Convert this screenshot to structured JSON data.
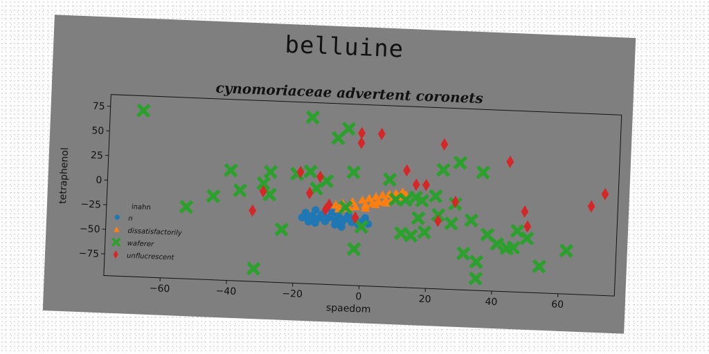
{
  "chart_data": {
    "type": "scatter",
    "suptitle": "belluine",
    "title": "cynomoriaceae advertent coronets",
    "xlabel": "spaedom",
    "ylabel": "tetraphenol",
    "xlim": [
      -77,
      77
    ],
    "ylim": [
      -97,
      87
    ],
    "xticks": [
      -60,
      -40,
      -20,
      0,
      20,
      40,
      60
    ],
    "yticks": [
      -75,
      -50,
      -25,
      0,
      25,
      50,
      75
    ],
    "legend": {
      "title": "inahn",
      "placement": "lower-left",
      "entries": [
        "n",
        "dissatisfactorily",
        "waferer",
        "unflucrescent"
      ]
    },
    "series": [
      {
        "name": "n",
        "marker": "circle",
        "color": "#1f77b4",
        "points": [
          [
            -18,
            -30
          ],
          [
            -17,
            -25
          ],
          [
            -16,
            -31
          ],
          [
            -15,
            -28
          ],
          [
            -14,
            -22
          ],
          [
            -13,
            -30
          ],
          [
            -12,
            -26
          ],
          [
            -11,
            -33
          ],
          [
            -10,
            -29
          ],
          [
            -9,
            -24
          ],
          [
            -8,
            -31
          ],
          [
            -7,
            -27
          ],
          [
            -6,
            -34
          ],
          [
            -5,
            -30
          ],
          [
            -4,
            -26
          ],
          [
            -3,
            -33
          ],
          [
            -2,
            -29
          ],
          [
            -1,
            -35
          ],
          [
            0,
            -32
          ],
          [
            1,
            -28
          ],
          [
            2,
            -34
          ],
          [
            -16,
            -34
          ],
          [
            -14,
            -35
          ],
          [
            -8,
            -36
          ],
          [
            -6,
            -38
          ]
        ]
      },
      {
        "name": "dissatisfactorily",
        "marker": "triangle",
        "color": "#ff7f0e",
        "points": [
          [
            -8,
            -16
          ],
          [
            -6,
            -14
          ],
          [
            -5,
            -19
          ],
          [
            -3,
            -12
          ],
          [
            -2,
            -17
          ],
          [
            0,
            -10
          ],
          [
            1,
            -15
          ],
          [
            2,
            -8
          ],
          [
            3,
            -13
          ],
          [
            4,
            -6
          ],
          [
            5,
            -11
          ],
          [
            6,
            -4
          ],
          [
            7,
            -9
          ],
          [
            8,
            -3
          ],
          [
            9,
            -7
          ],
          [
            10,
            -2
          ],
          [
            11,
            -5
          ],
          [
            12,
            0
          ],
          [
            -7,
            -20
          ],
          [
            -4,
            -18
          ],
          [
            1,
            -18
          ],
          [
            4,
            -14
          ],
          [
            7,
            -12
          ],
          [
            10,
            -8
          ],
          [
            13,
            -3
          ]
        ]
      },
      {
        "name": "waferer",
        "marker": "x",
        "color": "#2ca02c",
        "points": [
          [
            -67,
            72
          ],
          [
            -53,
            -24
          ],
          [
            -45,
            -12
          ],
          [
            -40,
            15
          ],
          [
            -37,
            -5
          ],
          [
            -32,
            -84
          ],
          [
            -30,
            3
          ],
          [
            -28,
            15
          ],
          [
            -28,
            -8
          ],
          [
            -24,
            -43
          ],
          [
            -20,
            14
          ],
          [
            -16,
            72
          ],
          [
            -16,
            17
          ],
          [
            -14,
            0
          ],
          [
            -11,
            8
          ],
          [
            -8,
            52
          ],
          [
            -5,
            62
          ],
          [
            -5,
            -18
          ],
          [
            -3,
            18
          ],
          [
            -2,
            -60
          ],
          [
            0,
            -37
          ],
          [
            8,
            12
          ],
          [
            10,
            -8
          ],
          [
            12,
            -42
          ],
          [
            13,
            -8
          ],
          [
            15,
            -44
          ],
          [
            16,
            -5
          ],
          [
            17,
            -26
          ],
          [
            18,
            -8
          ],
          [
            19,
            -40
          ],
          [
            22,
            -3
          ],
          [
            23,
            -22
          ],
          [
            24,
            24
          ],
          [
            27,
            -30
          ],
          [
            28,
            -10
          ],
          [
            29,
            32
          ],
          [
            31,
            -60
          ],
          [
            33,
            -26
          ],
          [
            35,
            -68
          ],
          [
            35,
            -85
          ],
          [
            36,
            23
          ],
          [
            38,
            -40
          ],
          [
            41,
            -49
          ],
          [
            44,
            -53
          ],
          [
            46,
            -52
          ],
          [
            47,
            -35
          ],
          [
            50,
            -42
          ],
          [
            54,
            -70
          ],
          [
            62,
            -53
          ]
        ]
      },
      {
        "name": "unflucrescent",
        "marker": "diamond",
        "color": "#d62728",
        "points": [
          [
            -33,
            -25
          ],
          [
            -30,
            -5
          ],
          [
            -19,
            16
          ],
          [
            -16,
            -5
          ],
          [
            -13,
            12
          ],
          [
            -11,
            -21
          ],
          [
            -10,
            -16
          ],
          [
            -2,
            -28
          ],
          [
            -1,
            48
          ],
          [
            -1,
            58
          ],
          [
            5,
            58
          ],
          [
            13,
            22
          ],
          [
            16,
            8
          ],
          [
            19,
            8
          ],
          [
            23,
            -28
          ],
          [
            24,
            50
          ],
          [
            28,
            -8
          ],
          [
            44,
            35
          ],
          [
            49,
            -15
          ],
          [
            50,
            -30
          ],
          [
            69,
            -7
          ],
          [
            73,
            6
          ]
        ]
      }
    ]
  }
}
